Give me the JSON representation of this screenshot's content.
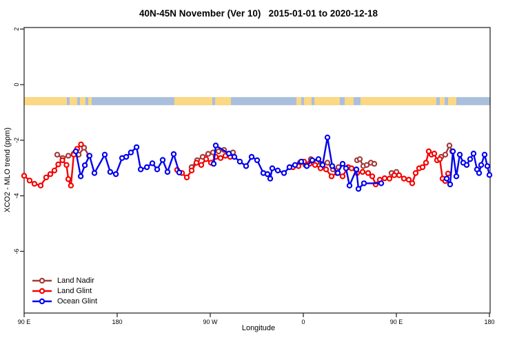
{
  "chart_data": {
    "type": "line",
    "title": "40N-45N November (Ver 10)   2015-01-01 to 2020-12-18",
    "xlabel": "Longitude",
    "ylabel": "XCO2 - MLO trend (ppm)",
    "x_axis": {
      "note": "longitude axis starts at 90E and wraps eastward through 180, 90W, 0, 90E to 180 (450 degrees total)",
      "range_deg": [
        0,
        450
      ],
      "ticks_deg": [
        0,
        90,
        180,
        270,
        360,
        450
      ],
      "tick_labels": [
        "90 E",
        "180",
        "90 W",
        "0",
        "90 E",
        "180"
      ]
    },
    "y_axis": {
      "range": [
        -8.2,
        2.05
      ],
      "ticks": [
        2,
        0,
        -2,
        -4,
        -6
      ],
      "tick_labels": [
        "2",
        "0",
        "-2",
        "-4",
        "-6"
      ]
    },
    "grid": "off",
    "legend_position": "bottom-left-inside",
    "map_band": {
      "description": "land/ocean strip showing surface type along longitude",
      "value_top": -0.45,
      "value_bottom": -0.74,
      "ocean_color": "#a9bfdc",
      "land_color": "#fcd883",
      "land_segments_deg": [
        [
          0,
          41.3
        ],
        [
          44,
          51.3
        ],
        [
          54,
          59.3
        ],
        [
          62,
          65.3
        ],
        [
          145.3,
          182
        ],
        [
          184.7,
          200
        ],
        [
          263.3,
          268
        ],
        [
          270.7,
          278
        ],
        [
          280.7,
          305.3
        ],
        [
          310,
          318.7
        ],
        [
          325.3,
          398.7
        ],
        [
          402,
          406.7
        ],
        [
          410,
          418
        ]
      ]
    },
    "series": [
      {
        "name": "Land Nadir",
        "color": "#a33a3a",
        "marker": "open-circle",
        "segments": [
          [
            [
              32,
              -2.52
            ],
            [
              37.3,
              -2.64
            ],
            [
              42.7,
              -2.56
            ],
            [
              48,
              -2.48
            ],
            [
              52.7,
              -2.52
            ],
            [
              58,
              -2.27
            ],
            [
              62.7,
              -2.56
            ]
          ],
          [
            [
              162,
              -2.97
            ],
            [
              167.3,
              -2.72
            ],
            [
              172.7,
              -2.6
            ],
            [
              178,
              -2.49
            ],
            [
              182.7,
              -2.44
            ],
            [
              188,
              -2.4
            ],
            [
              193.3,
              -2.35
            ],
            [
              197.3,
              -2.52
            ],
            [
              202,
              -2.44
            ]
          ],
          [
            [
              266.7,
              -2.81
            ],
            [
              272,
              -2.89
            ],
            [
              277.3,
              -2.68
            ],
            [
              282.7,
              -2.81
            ],
            [
              288,
              -2.85
            ],
            [
              293.3,
              -2.81
            ],
            [
              298.7,
              -3.05
            ],
            [
              304,
              -2.97
            ]
          ],
          [
            [
              322,
              -2.72
            ],
            [
              324.7,
              -2.68
            ],
            [
              328,
              -2.93
            ],
            [
              331.3,
              -2.89
            ],
            [
              335.3,
              -2.81
            ],
            [
              338.7,
              -2.85
            ]
          ],
          [
            [
              355.3,
              -3.18
            ],
            [
              360,
              -3.14
            ]
          ],
          [
            [
              403.3,
              -2.6
            ],
            [
              407.3,
              -2.52
            ],
            [
              411.3,
              -2.19
            ],
            [
              414,
              -2.4
            ]
          ]
        ]
      },
      {
        "name": "Land Glint",
        "color": "#f40000",
        "marker": "open-circle",
        "segments": [
          [
            [
              0,
              -3.28
            ],
            [
              5.3,
              -3.45
            ],
            [
              10,
              -3.57
            ],
            [
              16,
              -3.63
            ],
            [
              21.3,
              -3.34
            ],
            [
              25.3,
              -3.22
            ],
            [
              29.3,
              -3.09
            ],
            [
              33,
              -2.87
            ],
            [
              37,
              -2.72
            ],
            [
              41,
              -2.89
            ],
            [
              42.7,
              -3.4
            ],
            [
              45.3,
              -3.63
            ],
            [
              48,
              -2.52
            ],
            [
              51.3,
              -2.31
            ],
            [
              55,
              -2.15
            ]
          ],
          [
            [
              148,
              -3.07
            ],
            [
              152.7,
              -3.18
            ],
            [
              157.3,
              -3.34
            ],
            [
              162,
              -3.09
            ],
            [
              166.7,
              -2.81
            ],
            [
              171.3,
              -2.89
            ],
            [
              176,
              -2.68
            ],
            [
              180.7,
              -2.81
            ],
            [
              185.3,
              -2.6
            ],
            [
              190,
              -2.64
            ],
            [
              194.7,
              -2.56
            ],
            [
              199.3,
              -2.6
            ]
          ],
          [
            [
              260,
              -2.97
            ],
            [
              265.3,
              -2.93
            ],
            [
              270.7,
              -2.77
            ],
            [
              276,
              -2.85
            ],
            [
              281.3,
              -2.89
            ],
            [
              286.7,
              -3.01
            ],
            [
              292,
              -3.05
            ],
            [
              297.3,
              -3.3
            ],
            [
              302.7,
              -3.18
            ],
            [
              308,
              -3.3
            ],
            [
              313.3,
              -2.97
            ],
            [
              316.7,
              -3.01
            ],
            [
              322,
              -3.18
            ],
            [
              327.3,
              -3.14
            ],
            [
              332.7,
              -3.18
            ],
            [
              336.7,
              -3.3
            ],
            [
              340,
              -3.59
            ],
            [
              344,
              -3.42
            ],
            [
              348.7,
              -3.37
            ],
            [
              353.3,
              -3.38
            ],
            [
              358,
              -3.26
            ],
            [
              362.7,
              -3.26
            ],
            [
              367.3,
              -3.38
            ],
            [
              372,
              -3.42
            ],
            [
              375.3,
              -3.55
            ],
            [
              378.7,
              -3.18
            ],
            [
              382,
              -3.01
            ],
            [
              385.3,
              -2.97
            ],
            [
              388.7,
              -2.81
            ],
            [
              391.3,
              -2.4
            ],
            [
              394,
              -2.52
            ],
            [
              396.7,
              -2.48
            ],
            [
              399.3,
              -2.72
            ],
            [
              402,
              -2.68
            ],
            [
              404.7,
              -3.38
            ],
            [
              407.3,
              -3.47
            ],
            [
              410,
              -3.2
            ]
          ]
        ]
      },
      {
        "name": "Ocean Glint",
        "color": "#0000ee",
        "marker": "open-circle",
        "segments": [
          [
            [
              50,
              -2.4
            ],
            [
              54.7,
              -3.3
            ],
            [
              58.7,
              -2.9
            ],
            [
              63.3,
              -2.56
            ],
            [
              68,
              -3.18
            ],
            [
              78,
              -2.52
            ],
            [
              83.3,
              -3.14
            ],
            [
              88.7,
              -3.22
            ],
            [
              94.7,
              -2.64
            ],
            [
              98.7,
              -2.6
            ],
            [
              103.3,
              -2.44
            ],
            [
              108.7,
              -2.25
            ],
            [
              112.7,
              -3.05
            ],
            [
              118.7,
              -2.97
            ],
            [
              124,
              -2.83
            ],
            [
              128.7,
              -3.05
            ],
            [
              134,
              -2.71
            ],
            [
              138.7,
              -3.14
            ],
            [
              144.7,
              -2.5
            ],
            [
              150,
              -3.16
            ]
          ],
          [
            [
              183.3,
              -2.85
            ],
            [
              185.3,
              -2.19
            ],
            [
              198,
              -2.48
            ],
            [
              203.3,
              -2.6
            ],
            [
              208.7,
              -2.77
            ],
            [
              214.7,
              -2.93
            ],
            [
              220,
              -2.6
            ],
            [
              225.3,
              -2.72
            ],
            [
              231.3,
              -3.18
            ],
            [
              235.3,
              -3.22
            ],
            [
              238,
              -3.38
            ],
            [
              240,
              -3.01
            ],
            [
              245.3,
              -3.09
            ],
            [
              251.3,
              -3.18
            ],
            [
              256.7,
              -2.97
            ],
            [
              262,
              -2.89
            ],
            [
              268,
              -2.77
            ],
            [
              273.3,
              -2.93
            ],
            [
              278.7,
              -2.72
            ],
            [
              284.7,
              -2.68
            ],
            [
              288.7,
              -2.89
            ],
            [
              293.3,
              -1.9
            ],
            [
              298,
              -2.93
            ],
            [
              303.3,
              -3.18
            ],
            [
              308,
              -2.85
            ],
            [
              311.3,
              -3.01
            ],
            [
              314.7,
              -3.63
            ],
            [
              321.3,
              -3.05
            ],
            [
              323.3,
              -3.75
            ],
            [
              328.7,
              -3.55
            ],
            [
              345.3,
              -3.55
            ]
          ],
          [
            [
              408.7,
              -3.38
            ],
            [
              412,
              -3.59
            ],
            [
              414.7,
              -2.4
            ],
            [
              418,
              -3.3
            ],
            [
              421.3,
              -2.52
            ],
            [
              424.7,
              -2.81
            ],
            [
              428,
              -2.89
            ],
            [
              431.3,
              -2.68
            ],
            [
              434.7,
              -2.48
            ],
            [
              438,
              -3.05
            ],
            [
              440,
              -3.18
            ],
            [
              442,
              -2.89
            ],
            [
              445.3,
              -2.52
            ],
            [
              448,
              -2.93
            ],
            [
              450,
              -3.25
            ]
          ]
        ]
      }
    ]
  },
  "legend": {
    "items": [
      "Land Nadir",
      "Land Glint",
      "Ocean Glint"
    ]
  },
  "style": {
    "axis_color": "#2b2b2b",
    "text_color": "#000000",
    "background": "#ffffff"
  }
}
